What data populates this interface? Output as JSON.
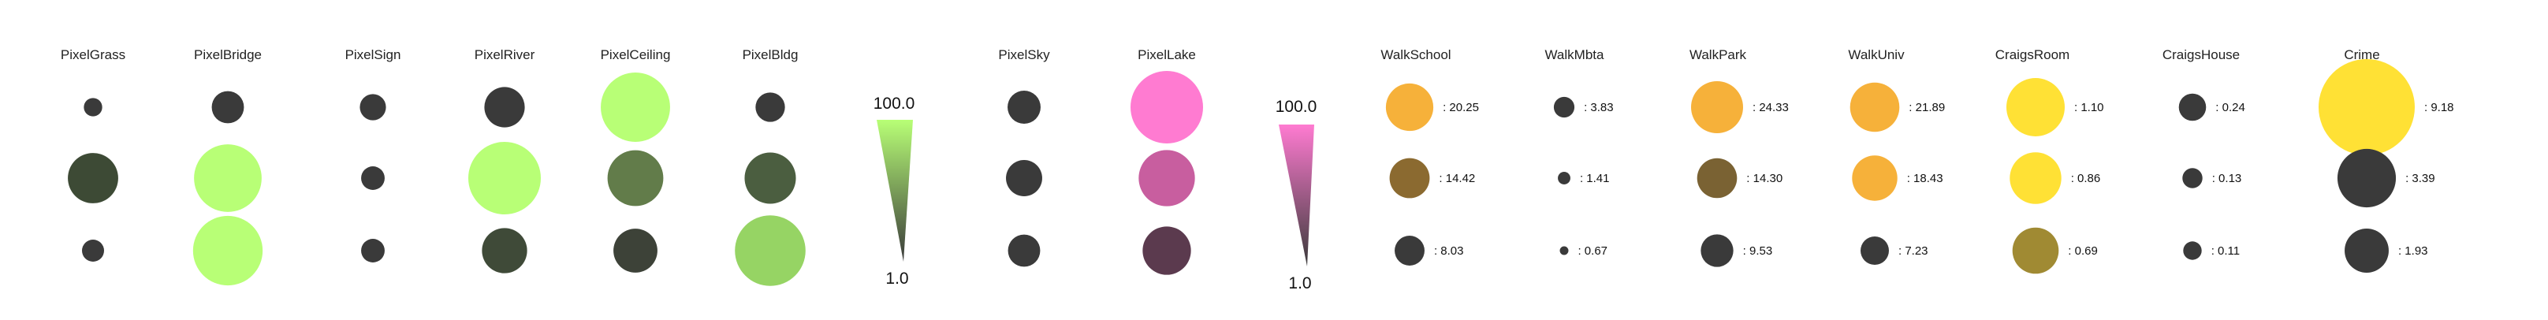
{
  "chart_data": {
    "type": "scatter",
    "rows": 3,
    "pixel_columns": [
      {
        "name": "PixelGrass",
        "values": [
          2,
          42,
          4
        ],
        "colors": [
          "#3a3a3a",
          "#3d4a35",
          "#3a3a3a"
        ]
      },
      {
        "name": "PixelBridge",
        "values": [
          13,
          85,
          91
        ],
        "colors": [
          "#3a3a3a",
          "#b8ff76",
          "#b8ff76"
        ]
      },
      {
        "name": "PixelSign",
        "values": [
          7,
          5,
          5
        ],
        "colors": [
          "#3a3a3a",
          "#3a3a3a",
          "#3a3a3a"
        ]
      },
      {
        "name": "PixelRiver",
        "values": [
          24,
          100,
          32
        ],
        "colors": [
          "#3a3a3a",
          "#b8ff76",
          "#3f4a38"
        ]
      },
      {
        "name": "PixelCeiling",
        "values": [
          90,
          54,
          30
        ],
        "colors": [
          "#b8ff76",
          "#627c4a",
          "#3d4238"
        ]
      },
      {
        "name": "PixelBldg",
        "values": [
          10,
          44,
          94
        ],
        "colors": [
          "#3a3a3a",
          "#4b5e40",
          "#96d464"
        ]
      },
      {
        "name": "PixelSky",
        "values": [
          14,
          18,
          13
        ],
        "colors": [
          "#3a3a3a",
          "#3a3a3a",
          "#3a3a3a"
        ]
      },
      {
        "name": "PixelLake",
        "values": [
          100,
          55,
          38
        ],
        "colors": [
          "#ff7bd1",
          "#c85e9f",
          "#5b3a4e"
        ]
      }
    ],
    "walk_columns": [
      {
        "name": "WalkSchool",
        "values": [
          20.25,
          14.42,
          8.03
        ],
        "labels": [
          "20.25",
          "14.42",
          "8.03"
        ],
        "colors": [
          "#f6b13a",
          "#8b6a30",
          "#3a3a3a"
        ]
      },
      {
        "name": "WalkMbta",
        "values": [
          3.83,
          1.41,
          0.67
        ],
        "labels": [
          "3.83",
          "1.41",
          "0.67"
        ],
        "colors": [
          "#3a3a3a",
          "#3a3a3a",
          "#3a3a3a"
        ]
      },
      {
        "name": "WalkPark",
        "values": [
          24.33,
          14.3,
          9.53
        ],
        "labels": [
          "24.33",
          "14.30",
          "9.53"
        ],
        "colors": [
          "#f6b13a",
          "#7a6233",
          "#3a3a3a"
        ]
      },
      {
        "name": "WalkUniv",
        "values": [
          21.89,
          18.43,
          7.23
        ],
        "labels": [
          "21.89",
          "18.43",
          "7.23"
        ],
        "colors": [
          "#f6b13a",
          "#f6b13a",
          "#3a3a3a"
        ]
      },
      {
        "name": "CraigsRoom",
        "values": [
          1.1,
          0.86,
          0.69
        ],
        "labels": [
          "1.10",
          "0.86",
          "0.69"
        ],
        "colors": [
          "#ffe135",
          "#ffe135",
          "#a08a33"
        ]
      },
      {
        "name": "CraigsHouse",
        "values": [
          0.24,
          0.13,
          0.11
        ],
        "labels": [
          "0.24",
          "0.13",
          "0.11"
        ],
        "colors": [
          "#3a3a3a",
          "#3a3a3a",
          "#3a3a3a"
        ]
      },
      {
        "name": "Crime",
        "values": [
          9.18,
          3.39,
          1.93
        ],
        "labels": [
          "9.18",
          "3.39",
          "1.93"
        ],
        "colors": [
          "#ffe135",
          "#3a3a3a",
          "#3a3a3a"
        ]
      }
    ],
    "color_scales": [
      {
        "max_label": "100.0",
        "min_label": "1.0",
        "top_color": "#b8ff76",
        "bottom_color": "#3a3a3a"
      },
      {
        "max_label": "100.0",
        "min_label": "1.0",
        "top_color": "#ff7bd1",
        "bottom_color": "#3a3a3a"
      }
    ],
    "legend": "none",
    "grid": false
  }
}
